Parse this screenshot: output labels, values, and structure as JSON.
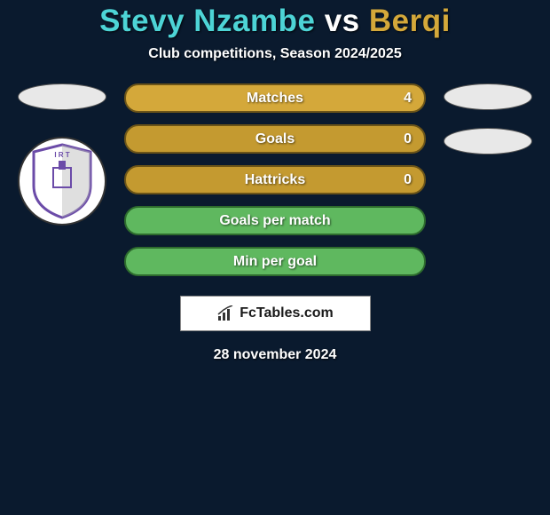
{
  "header": {
    "player1": "Stevy Nzambe",
    "vs": "vs",
    "player2": "Berqi",
    "subtitle": "Club competitions, Season 2024/2025",
    "player1_color": "#4dd4d6",
    "player2_color": "#d4a83a"
  },
  "stats": {
    "rows": [
      {
        "label": "Matches",
        "value": "4",
        "bg": "#d4a83a",
        "border": "#6b5418",
        "has_value": true
      },
      {
        "label": "Goals",
        "value": "0",
        "bg": "#c49a30",
        "border": "#6b5418",
        "has_value": true
      },
      {
        "label": "Hattricks",
        "value": "0",
        "bg": "#c49a30",
        "border": "#6b5418",
        "has_value": true
      },
      {
        "label": "Goals per match",
        "value": "",
        "bg": "#5fb85f",
        "border": "#2d6b2d",
        "has_value": false
      },
      {
        "label": "Min per goal",
        "value": "",
        "bg": "#5fb85f",
        "border": "#2d6b2d",
        "has_value": false
      }
    ]
  },
  "side": {
    "left_ellipses": 1,
    "right_ellipses": 2,
    "club_badge_colors": {
      "outline": "#6b4ba8",
      "inner": "#ffffff",
      "stripe": "#b8b8b8"
    }
  },
  "watermark": {
    "text": "FcTables.com",
    "icon_color": "#333333"
  },
  "footer": {
    "date": "28 november 2024"
  }
}
